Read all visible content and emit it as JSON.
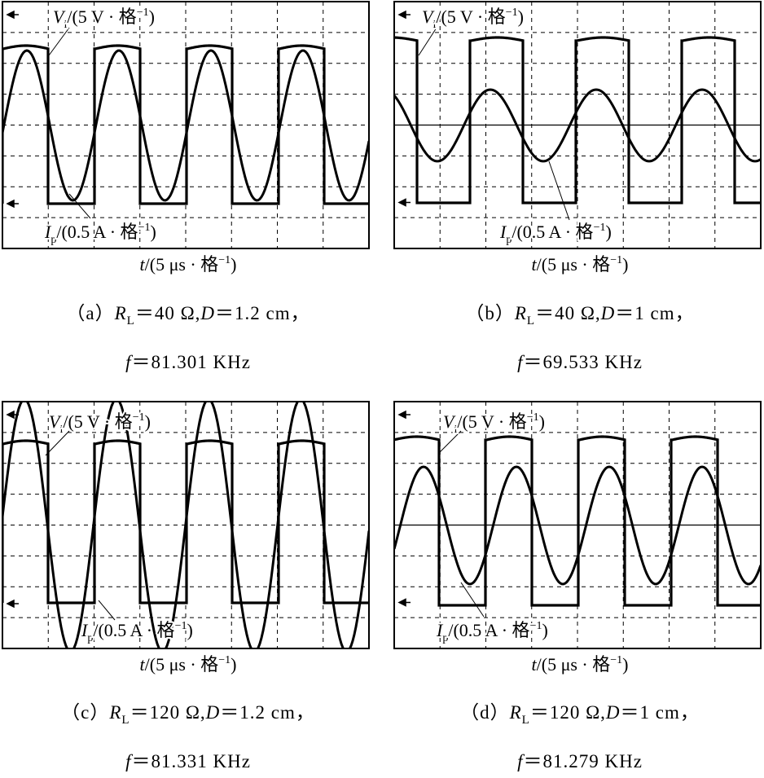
{
  "panels": [
    {
      "vi": {
        "symbol": "V",
        "sub": "i",
        "unit": "/(5 V · 格",
        "sup": "−1",
        "close": ")"
      },
      "ip": {
        "symbol": "I",
        "sub": "p",
        "unit": "/(0.5 A · 格",
        "sup": "−1",
        "close": ")"
      },
      "xlabel": {
        "symbol": "t",
        "unit": "/(5 μs · 格",
        "sup": "−1",
        "close": ")"
      },
      "caption": [
        [
          {
            "t": "（a）"
          },
          {
            "t": "R",
            "i": true
          },
          {
            "t": "L",
            "sub": true
          },
          {
            "t": "＝40 Ω,"
          },
          {
            "t": "D",
            "i": true
          },
          {
            "t": "＝1.2 cm，"
          }
        ],
        [
          {
            "t": "f",
            "i": true
          },
          {
            "t": "＝81.301 KHz"
          }
        ]
      ]
    },
    {
      "vi": {
        "symbol": "V",
        "sub": "i",
        "unit": "/(5 V · 格",
        "sup": "−1",
        "close": ")"
      },
      "ip": {
        "symbol": "I",
        "sub": "p",
        "unit": "/(0.5 A · 格",
        "sup": "−1",
        "close": ")"
      },
      "xlabel": {
        "symbol": "t",
        "unit": "/(5 μs · 格",
        "sup": "−1",
        "close": ")"
      },
      "caption": [
        [
          {
            "t": "（b）"
          },
          {
            "t": "R",
            "i": true
          },
          {
            "t": "L",
            "sub": true
          },
          {
            "t": "＝40 Ω,"
          },
          {
            "t": "D",
            "i": true
          },
          {
            "t": "＝1 cm，"
          }
        ],
        [
          {
            "t": "f",
            "i": true
          },
          {
            "t": "＝69.533 KHz"
          }
        ]
      ]
    },
    {
      "vi": {
        "symbol": "V",
        "sub": "i",
        "unit": "/(5 V · 格",
        "sup": "−1",
        "close": ")"
      },
      "ip": {
        "symbol": "I",
        "sub": "p",
        "unit": "/(0.5 A · 格",
        "sup": "−1",
        "close": ")"
      },
      "xlabel": {
        "symbol": "t",
        "unit": "/(5 μs · 格",
        "sup": "−1",
        "close": ")"
      },
      "caption": [
        [
          {
            "t": "（c）"
          },
          {
            "t": "R",
            "i": true
          },
          {
            "t": "L",
            "sub": true
          },
          {
            "t": "＝120 Ω,"
          },
          {
            "t": "D",
            "i": true
          },
          {
            "t": "＝1.2 cm，"
          }
        ],
        [
          {
            "t": "f",
            "i": true
          },
          {
            "t": "＝81.331 KHz"
          }
        ]
      ]
    },
    {
      "vi": {
        "symbol": "V",
        "sub": "i",
        "unit": "/(5 V · 格",
        "sup": "−1",
        "close": ")"
      },
      "ip": {
        "symbol": "I",
        "sub": "p",
        "unit": "/(0.5 A · 格",
        "sup": "−1",
        "close": ")"
      },
      "xlabel": {
        "symbol": "t",
        "unit": "/(5 μs · 格",
        "sup": "−1",
        "close": ")"
      },
      "caption": [
        [
          {
            "t": "（d）"
          },
          {
            "t": "R",
            "i": true
          },
          {
            "t": "L",
            "sub": true
          },
          {
            "t": "＝120 Ω,"
          },
          {
            "t": "D",
            "i": true
          },
          {
            "t": "＝1 cm，"
          }
        ],
        [
          {
            "t": "f",
            "i": true
          },
          {
            "t": "＝81.279 KHz"
          }
        ]
      ]
    }
  ]
}
